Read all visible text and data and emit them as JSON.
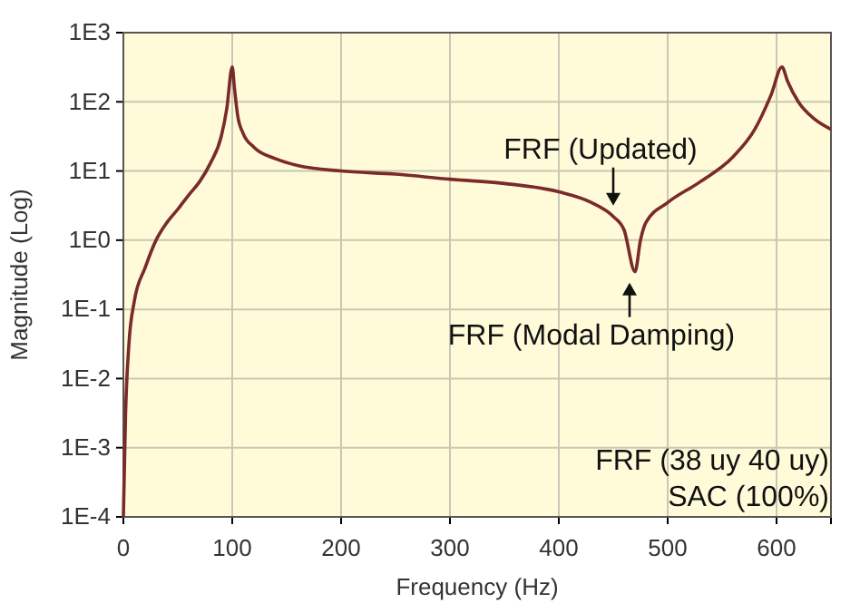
{
  "chart_data": {
    "type": "line",
    "xlabel": "Frequency (Hz)",
    "ylabel": "Magnitude (Log)",
    "log": "y",
    "xlim": [
      0,
      650
    ],
    "xticks": [
      0,
      100,
      200,
      300,
      400,
      500,
      600
    ],
    "ylim": [
      0.0001,
      1000
    ],
    "yticks": [
      {
        "value": 0.0001,
        "label": "1E-4"
      },
      {
        "value": 0.001,
        "label": "1E-3"
      },
      {
        "value": 0.01,
        "label": "1E-2"
      },
      {
        "value": 0.1,
        "label": "1E-1"
      },
      {
        "value": 1,
        "label": "1E0"
      },
      {
        "value": 10,
        "label": "1E1"
      },
      {
        "value": 100,
        "label": "1E2"
      },
      {
        "value": 1000,
        "label": "1E3"
      }
    ],
    "grid": true,
    "marker": "none",
    "line_style": "solid",
    "x": [
      0,
      2,
      5,
      10,
      20,
      30,
      40,
      50,
      60,
      70,
      80,
      90,
      95,
      100,
      102,
      105,
      110,
      120,
      140,
      160,
      200,
      250,
      300,
      350,
      400,
      430,
      450,
      460,
      470,
      475,
      480,
      500,
      530,
      560,
      580,
      595,
      605,
      610,
      620,
      635,
      650
    ],
    "series": [
      {
        "color": "#7a2a2a",
        "values": [
          0.0001,
          0.003,
          0.03,
          0.13,
          0.4,
          1,
          1.8,
          2.8,
          4.5,
          7,
          13,
          32,
          80,
          320,
          160,
          63,
          35,
          22,
          15,
          12,
          10,
          9,
          7.6,
          6.6,
          5,
          3.5,
          2.2,
          1.4,
          0.35,
          1,
          1.8,
          3.5,
          7,
          16,
          40,
          126,
          320,
          200,
          100,
          56,
          40
        ]
      }
    ],
    "annotations": [
      {
        "text": "FRF (Updated)",
        "x": 455,
        "y": 2.2
      },
      {
        "text": "FRF (Modal Damping)",
        "x": 470,
        "y": 0.35
      },
      "FRF (38 uy 40 uy)",
      "SAC (100%)"
    ]
  }
}
